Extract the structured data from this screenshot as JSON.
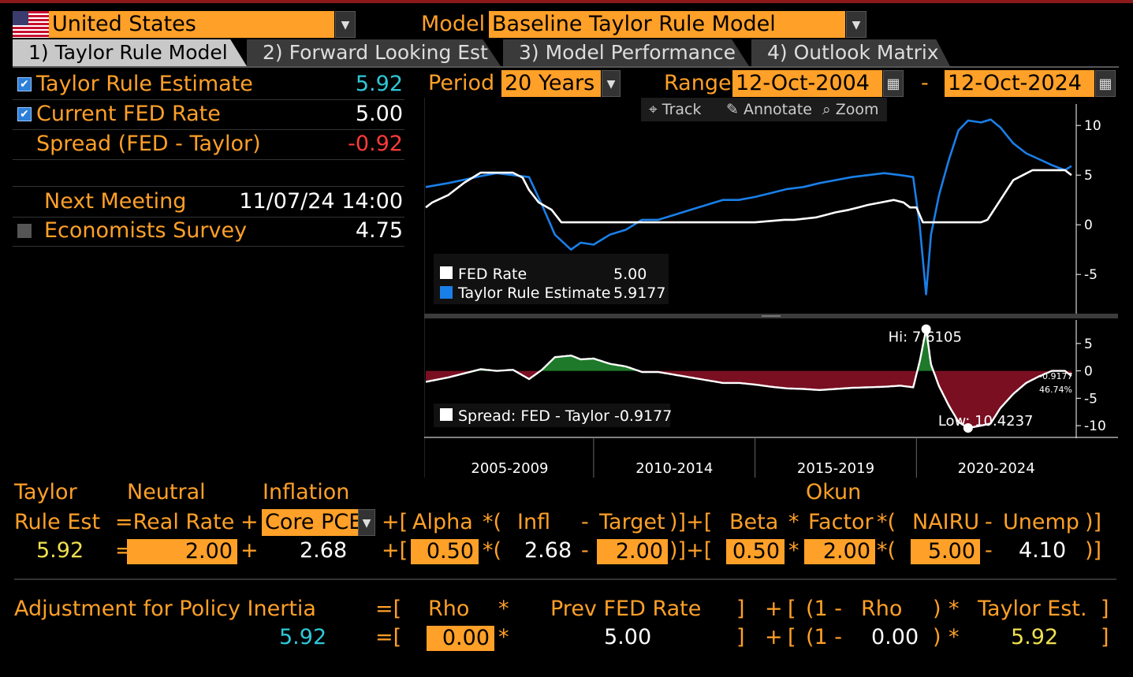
{
  "header": {
    "country": "United States",
    "model_label": "Model",
    "model": "Baseline Taylor Rule Model"
  },
  "tabs": [
    {
      "label": "1) Taylor Rule Model"
    },
    {
      "label": "2) Forward Looking Est"
    },
    {
      "label": "3) Model Performance"
    },
    {
      "label": "4) Outlook Matrix"
    }
  ],
  "summary": {
    "taylor_label": "Taylor Rule Estimate",
    "taylor_value": "5.92",
    "fed_label": "Current FED Rate",
    "fed_value": "5.00",
    "spread_label": "Spread (FED - Taylor)",
    "spread_value": "-0.92",
    "meeting_label": "Next Meeting",
    "meeting_value": "11/07/24 14:00",
    "survey_label": "Economists Survey",
    "survey_value": "4.75"
  },
  "controls": {
    "period_label": "Period",
    "period": "20 Years",
    "range_label": "Range",
    "range_start": "12-Oct-2004",
    "range_sep": "-",
    "range_end": "12-Oct-2024",
    "track": "Track",
    "annotate": "Annotate",
    "zoom": "Zoom"
  },
  "colors": {
    "accent": "#ffa028",
    "taylor": "#1a7fe8",
    "fed": "#ffffff",
    "spread_pos": "#1e7a2a",
    "spread_neg": "#7a0f22",
    "teal": "#30c8d8",
    "red": "#ff3030",
    "yellow": "#f0e050"
  },
  "chart_data": [
    {
      "type": "line",
      "series": [
        {
          "name": "FED Rate",
          "x": [
            2004.8,
            2005.0,
            2005.5,
            2006.0,
            2006.5,
            2007.0,
            2007.5,
            2007.8,
            2008.0,
            2008.3,
            2008.7,
            2009.0,
            2010,
            2011,
            2012,
            2013,
            2014,
            2015,
            2015.9,
            2016.2,
            2016.9,
            2017.2,
            2017.5,
            2017.9,
            2018.2,
            2018.5,
            2018.9,
            2019.3,
            2019.6,
            2019.8,
            2020.0,
            2020.2,
            2021.0,
            2022.0,
            2022.2,
            2022.4,
            2022.6,
            2022.8,
            2023.0,
            2023.3,
            2023.6,
            2024.0,
            2024.6,
            2024.8
          ],
          "values": [
            1.75,
            2.25,
            3.0,
            4.25,
            5.25,
            5.25,
            5.25,
            4.75,
            3.5,
            2.25,
            1.5,
            0.25,
            0.25,
            0.25,
            0.25,
            0.25,
            0.25,
            0.25,
            0.5,
            0.5,
            0.75,
            1.0,
            1.25,
            1.5,
            1.75,
            2.0,
            2.25,
            2.5,
            2.25,
            1.75,
            1.75,
            0.25,
            0.25,
            0.25,
            0.5,
            1.5,
            2.5,
            3.5,
            4.5,
            5.0,
            5.5,
            5.5,
            5.5,
            5.0
          ]
        },
        {
          "name": "Taylor Rule Estimate",
          "x": [
            2004.8,
            2005.5,
            2006.5,
            2007.0,
            2007.5,
            2008.0,
            2008.4,
            2008.8,
            2009.3,
            2009.6,
            2010.0,
            2010.5,
            2011.0,
            2011.5,
            2012.0,
            2012.5,
            2013.0,
            2013.5,
            2014.0,
            2014.5,
            2015.0,
            2015.5,
            2016.0,
            2016.5,
            2017.0,
            2017.5,
            2018.0,
            2018.5,
            2019.0,
            2019.5,
            2019.9,
            2020.1,
            2020.3,
            2020.45,
            2020.7,
            2021.0,
            2021.3,
            2021.6,
            2022.0,
            2022.3,
            2022.6,
            2023.0,
            2023.4,
            2023.8,
            2024.2,
            2024.6,
            2024.8
          ],
          "values": [
            3.8,
            4.2,
            4.9,
            5.2,
            5.0,
            4.8,
            2.0,
            -1.0,
            -2.5,
            -1.8,
            -2.0,
            -1.0,
            -0.5,
            0.5,
            0.5,
            1.0,
            1.5,
            2.0,
            2.5,
            2.5,
            2.8,
            3.2,
            3.6,
            3.8,
            4.2,
            4.5,
            4.8,
            5.0,
            5.2,
            5.0,
            4.8,
            0.0,
            -7.0,
            -1.0,
            3.0,
            6.5,
            9.5,
            10.5,
            10.3,
            10.6,
            9.8,
            8.2,
            7.2,
            6.6,
            6.0,
            5.5,
            5.92
          ]
        }
      ],
      "ylim": [
        -8,
        12
      ],
      "y_ticks": [
        10,
        5,
        0,
        -5
      ],
      "legend": {
        "fed_value": "5.00",
        "taylor_value": "5.9177"
      },
      "legend_placement": "bottom-left"
    },
    {
      "type": "area",
      "series": [
        {
          "name": "Spread: FED - Taylor",
          "x": [
            2004.8,
            2005.5,
            2006.5,
            2007.0,
            2007.5,
            2008.0,
            2008.4,
            2008.8,
            2009.3,
            2009.6,
            2010.0,
            2010.5,
            2011.0,
            2011.5,
            2012.0,
            2012.5,
            2013.0,
            2013.5,
            2014.0,
            2014.5,
            2015.0,
            2015.5,
            2016.0,
            2016.5,
            2017.0,
            2017.5,
            2018.0,
            2018.5,
            2019.0,
            2019.5,
            2019.9,
            2020.1,
            2020.3,
            2020.45,
            2020.7,
            2021.0,
            2021.3,
            2021.6,
            2022.0,
            2022.3,
            2022.6,
            2023.0,
            2023.4,
            2023.8,
            2024.2,
            2024.6,
            2024.8
          ],
          "values": [
            -2.0,
            -1.2,
            0.3,
            0.0,
            0.2,
            -1.5,
            0.2,
            2.5,
            2.8,
            2.1,
            2.25,
            1.3,
            0.8,
            -0.2,
            -0.2,
            -0.7,
            -1.2,
            -1.7,
            -2.2,
            -2.2,
            -2.5,
            -2.9,
            -3.2,
            -3.3,
            -3.5,
            -3.3,
            -3.1,
            -3.0,
            -2.9,
            -2.7,
            -3.0,
            1.7,
            7.6105,
            1.2,
            -2.8,
            -6.3,
            -9.3,
            -10.4237,
            -10.0,
            -9.6,
            -6.8,
            -4.2,
            -2.2,
            -1.0,
            0.0,
            0.0,
            -0.9177
          ]
        }
      ],
      "ylim": [
        -12,
        9
      ],
      "y_ticks": [
        5,
        0,
        -5,
        -10
      ],
      "hi_label": "Hi:",
      "hi_value": "7.6105",
      "low_label": "Low:",
      "low_value": "-10.4237",
      "last_value": "-0.9177",
      "last_pct": "46.74%",
      "legend": {
        "label": "Spread: FED - Taylor",
        "value": "-0.9177"
      },
      "x_periods": [
        "2005-2009",
        "2010-2014",
        "2015-2019",
        "2020-2024"
      ]
    }
  ],
  "formula": {
    "h1_taylor": "Taylor",
    "h1_neutral": "Neutral",
    "h1_inflation": "Inflation",
    "h1_okun": "Okun",
    "h2_rule_est": "Rule Est",
    "h2_eq_real_rate": "=Real Rate",
    "plus1": "+",
    "inflation_measure": "Core PCE",
    "h2_open_alpha": "+[",
    "h2_alpha": "Alpha",
    "h2_mult_open": "*(",
    "h2_infl": "Infl",
    "h2_minus": "-",
    "h2_target": "Target",
    "h2_close_plus_open": ")]+[",
    "h2_beta": "Beta",
    "h2_mult": "*",
    "h2_factor": "Factor",
    "h2_mult_open2": "*(",
    "h2_nairu": "NAIRU",
    "h2_minus2": "-",
    "h2_unemp": "Unemp",
    "h2_close": ")]",
    "v_taylor": "5.92",
    "v_eq": "=",
    "v_real_rate": "2.00",
    "v_plus": "+",
    "v_inflation": "2.68",
    "v_open": "+[",
    "v_alpha": "0.50",
    "v_mult_open": "*(",
    "v_infl": "2.68",
    "v_minus": "-",
    "v_target": "2.00",
    "v_close_plus_open": ")]+[",
    "v_beta": "0.50",
    "v_mult": "*",
    "v_factor": "2.00",
    "v_mult_open2": "*(",
    "v_nairu": "5.00",
    "v_minus2": "-",
    "v_unemp": "4.10",
    "v_close": ")]"
  },
  "inertia": {
    "label": "Adjustment for Policy Inertia",
    "h_eq": "=[",
    "h_rho": "Rho",
    "h_mult": "*",
    "h_prev": "Prev FED Rate",
    "h_close": "]",
    "h_plus": "+",
    "h_open": "[",
    "h_one_minus": "(1 -",
    "h_rho2": "Rho",
    "h_paren": ")",
    "h_mult2": "*",
    "h_taylor": "Taylor Est.",
    "h_close2": "]",
    "v_result": "5.92",
    "v_eq": "=[",
    "v_rho": "0.00",
    "v_mult": "*",
    "v_prev": "5.00",
    "v_close": "]",
    "v_plus": "+",
    "v_open": "[",
    "v_one_minus": "(1 -",
    "v_rho2": "0.00",
    "v_paren": ")",
    "v_mult2": "*",
    "v_taylor": "5.92",
    "v_close2": "]"
  }
}
